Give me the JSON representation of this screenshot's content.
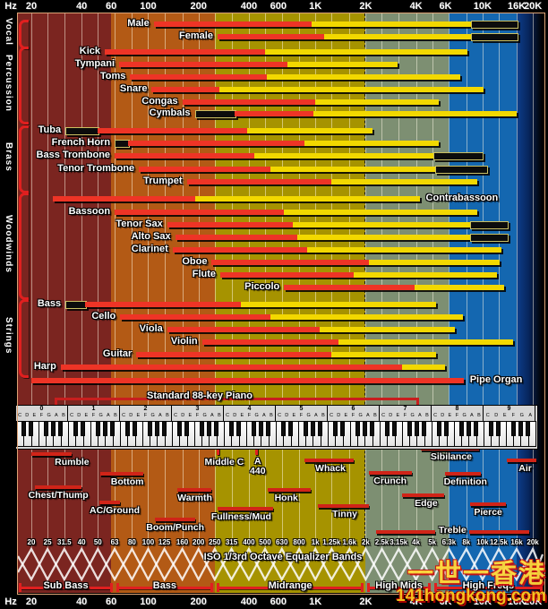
{
  "axis": {
    "unit": "Hz",
    "ticks": [
      {
        "label": "20",
        "f": 20
      },
      {
        "label": "40",
        "f": 40
      },
      {
        "label": "60",
        "f": 60
      },
      {
        "label": "100",
        "f": 100
      },
      {
        "label": "200",
        "f": 200
      },
      {
        "label": "400",
        "f": 400
      },
      {
        "label": "600",
        "f": 600
      },
      {
        "label": "1K",
        "f": 1000
      },
      {
        "label": "2K",
        "f": 2000
      },
      {
        "label": "4K",
        "f": 4000
      },
      {
        "label": "6K",
        "f": 6000
      },
      {
        "label": "10K",
        "f": 10000
      },
      {
        "label": "16K",
        "f": 16000
      },
      {
        "label": "20K",
        "f": 20000
      }
    ]
  },
  "colors": {
    "fundamental_red": "#ee3426",
    "harmonics_yellow": "#f2d800",
    "extended_black": "#0c0c0c",
    "bracket_red": "#e01f1f",
    "band_sub": "#7b2520",
    "band_low": "#b35a15",
    "band_mid": "#a69300",
    "band_himid": "#7d8f72",
    "band_high": "#1467b0",
    "watermark_yellow": "#ffd83a"
  },
  "chart_data": {
    "type": "bar",
    "x_scale": "log",
    "x_range": [
      20,
      20000
    ],
    "x_unit": "Hz",
    "segment_colors": {
      "red": "#ee3426",
      "yellow": "#f2d800",
      "ext": "#0c0c0c"
    },
    "bands_background": [
      {
        "from": 20,
        "to": 60,
        "color": "#7b2520"
      },
      {
        "from": 60,
        "to": 250,
        "color": "#b35a15"
      },
      {
        "from": 250,
        "to": 2000,
        "color": "#a69300"
      },
      {
        "from": 2000,
        "to": 6300,
        "color": "#7d8f72"
      },
      {
        "from": 6300,
        "to": 16000,
        "color": "#1467b0"
      }
    ],
    "sections": [
      {
        "name": "Vocal",
        "bracket_y": [
          22,
          49
        ],
        "rows": [
          {
            "name": "Male",
            "y": 27,
            "side": "left",
            "segs": [
              [
                "red",
                108,
                950
              ],
              [
                "yellow",
                950,
                8500
              ],
              [
                "ext",
                8500,
                16000
              ]
            ]
          },
          {
            "name": "Female",
            "y": 41,
            "side": "left",
            "segs": [
              [
                "red",
                260,
                1130
              ],
              [
                "yellow",
                1130,
                8500
              ],
              [
                "ext",
                8500,
                16000
              ]
            ]
          }
        ]
      },
      {
        "name": "Percussion",
        "bracket_y": [
          52,
          133
        ],
        "rows": [
          {
            "name": "Kick",
            "y": 58,
            "side": "left",
            "segs": [
              [
                "red",
                55,
                500
              ],
              [
                "yellow",
                500,
                8100
              ]
            ]
          },
          {
            "name": "Tympani",
            "y": 72,
            "side": "left",
            "segs": [
              [
                "red",
                67,
                680
              ],
              [
                "yellow",
                680,
                3100
              ]
            ]
          },
          {
            "name": "Toms",
            "y": 86,
            "side": "left",
            "segs": [
              [
                "red",
                78,
                510
              ],
              [
                "yellow",
                510,
                7400
              ]
            ]
          },
          {
            "name": "Snare",
            "y": 100,
            "side": "left",
            "segs": [
              [
                "red",
                105,
                265
              ],
              [
                "yellow",
                265,
                10100
              ]
            ]
          },
          {
            "name": "Congas",
            "y": 114,
            "side": "left",
            "segs": [
              [
                "red",
                160,
                1000
              ],
              [
                "yellow",
                1000,
                5500
              ]
            ]
          },
          {
            "name": "Cymbals",
            "y": 127,
            "side": "left",
            "segs": [
              [
                "ext",
                190,
                330
              ],
              [
                "red",
                330,
                970
              ],
              [
                "yellow",
                970,
                16000
              ]
            ]
          }
        ]
      },
      {
        "name": "Brass",
        "bracket_y": [
          140,
          210
        ],
        "rows": [
          {
            "name": "Tuba",
            "y": 146,
            "side": "left",
            "segs": [
              [
                "ext",
                32,
                50
              ],
              [
                "red",
                50,
                390
              ],
              [
                "yellow",
                390,
                2200
              ]
            ]
          },
          {
            "name": "French Horn",
            "y": 160,
            "side": "left",
            "segs": [
              [
                "ext",
                63,
                76
              ],
              [
                "red",
                76,
                860
              ],
              [
                "yellow",
                860,
                5500
              ]
            ]
          },
          {
            "name": "Bass Trombone",
            "y": 174,
            "side": "left",
            "segs": [
              [
                "red",
                63,
                430
              ],
              [
                "yellow",
                430,
                5100
              ],
              [
                "ext",
                5100,
                9900
              ]
            ]
          },
          {
            "name": "Tenor Trombone",
            "y": 189,
            "side": "left",
            "segs": [
              [
                "red",
                88,
                540
              ],
              [
                "yellow",
                540,
                5200
              ],
              [
                "ext",
                5200,
                10500
              ]
            ]
          },
          {
            "name": "Trumpet",
            "y": 203,
            "side": "left",
            "segs": [
              [
                "red",
                170,
                1250
              ],
              [
                "yellow",
                1250,
                9300
              ]
            ]
          }
        ]
      },
      {
        "name": "Woodwinds",
        "bracket_y": [
          215,
          329
        ],
        "rows": [
          {
            "name": "Contrabassoon",
            "y": 222,
            "side": "right",
            "segs": [
              [
                "red",
                27,
                190
              ],
              [
                "yellow",
                190,
                4200
              ]
            ]
          },
          {
            "name": "Bassoon",
            "y": 237,
            "side": "left",
            "segs": [
              [
                "red",
                63,
                650
              ],
              [
                "yellow",
                650,
                9300
              ]
            ]
          },
          {
            "name": "Tenor Sax",
            "y": 251,
            "side": "left",
            "segs": [
              [
                "red",
                130,
                730
              ],
              [
                "yellow",
                730,
                8400
              ],
              [
                "ext",
                8400,
                14000
              ]
            ]
          },
          {
            "name": "Alto Sax",
            "y": 265,
            "side": "left",
            "segs": [
              [
                "red",
                145,
                780
              ],
              [
                "yellow",
                780,
                8400
              ],
              [
                "ext",
                8400,
                14000
              ]
            ]
          },
          {
            "name": "Clarinet",
            "y": 279,
            "side": "left",
            "segs": [
              [
                "red",
                140,
                890
              ],
              [
                "yellow",
                890,
                13000
              ]
            ]
          },
          {
            "name": "Oboe",
            "y": 293,
            "side": "left",
            "segs": [
              [
                "red",
                240,
                2100
              ],
              [
                "yellow",
                2100,
                12600
              ]
            ]
          },
          {
            "name": "Flute",
            "y": 307,
            "side": "left",
            "segs": [
              [
                "red",
                270,
                1700
              ],
              [
                "yellow",
                1700,
                12200
              ]
            ]
          },
          {
            "name": "Piccolo",
            "y": 321,
            "side": "left",
            "segs": [
              [
                "red",
                650,
                3900
              ],
              [
                "yellow",
                3900,
                13500
              ]
            ]
          }
        ]
      },
      {
        "name": "Strings",
        "bracket_y": [
          334,
          416
        ],
        "rows": [
          {
            "name": "Bass",
            "y": 340,
            "side": "left",
            "segs": [
              [
                "ext",
                32,
                42
              ],
              [
                "red",
                42,
                360
              ],
              [
                "yellow",
                360,
                5300
              ]
            ]
          },
          {
            "name": "Cello",
            "y": 354,
            "side": "left",
            "segs": [
              [
                "red",
                68,
                540
              ],
              [
                "yellow",
                540,
                7600
              ]
            ]
          },
          {
            "name": "Viola",
            "y": 368,
            "side": "left",
            "segs": [
              [
                "red",
                130,
                1060
              ],
              [
                "yellow",
                1060,
                6800
              ]
            ]
          },
          {
            "name": "Violin",
            "y": 382,
            "side": "left",
            "segs": [
              [
                "red",
                210,
                1370
              ],
              [
                "yellow",
                1370,
                15200
              ]
            ]
          },
          {
            "name": "Guitar",
            "y": 396,
            "side": "left",
            "segs": [
              [
                "red",
                85,
                1250
              ],
              [
                "yellow",
                1250,
                5300
              ]
            ]
          },
          {
            "name": "Harp",
            "y": 410,
            "side": "left",
            "segs": [
              [
                "red",
                30,
                3300
              ],
              [
                "yellow",
                3300,
                6000
              ]
            ]
          },
          {
            "name": "Pipe Organ",
            "y": 425,
            "side": "right",
            "segs": [
              [
                "red",
                20,
                7700
              ]
            ]
          }
        ]
      }
    ],
    "descriptors": [
      {
        "label": "Rumble",
        "bar": [
          20,
          35
        ],
        "bar_y": 505,
        "text_f": 35,
        "text_y": 510
      },
      {
        "label": "Chest/Thump",
        "bar": [
          21,
          40
        ],
        "bar_y": 542,
        "text_f": 29,
        "text_y": 547
      },
      {
        "label": "Bottom",
        "bar": [
          52,
          93
        ],
        "bar_y": 527,
        "text_f": 75,
        "text_y": 532
      },
      {
        "label": "AC/Ground",
        "bar": [
          51,
          68
        ],
        "bar_y": 559,
        "text_f": 63,
        "text_y": 564
      },
      {
        "label": "Warmth",
        "bar": [
          150,
          240
        ],
        "bar_y": 545,
        "text_f": 190,
        "text_y": 550
      },
      {
        "label": "Boom/Punch",
        "bar": [
          110,
          190
        ],
        "bar_y": 578,
        "text_f": 145,
        "text_y": 583
      },
      {
        "label": "Fullness/Mud",
        "bar": [
          260,
          560
        ],
        "bar_y": 566,
        "text_f": 360,
        "text_y": 571
      },
      {
        "label": "Middle C",
        "tick_f": 261.6,
        "tick_y": 497,
        "text_f": 285,
        "text_y": 510
      },
      {
        "label": "A",
        "label2": "440",
        "tick_f": 440,
        "tick_y": 497,
        "text_f": 452,
        "text_y": 509
      },
      {
        "label": "Whack",
        "bar": [
          860,
          1700
        ],
        "bar_y": 512,
        "text_f": 1230,
        "text_y": 517
      },
      {
        "label": "Honk",
        "bar": [
          520,
          940
        ],
        "bar_y": 545,
        "text_f": 670,
        "text_y": 550
      },
      {
        "label": "Tinny",
        "bar": [
          1030,
          2100
        ],
        "bar_y": 563,
        "text_f": 1500,
        "text_y": 568
      },
      {
        "label": "Crunch",
        "bar": [
          2100,
          3800
        ],
        "bar_y": 526,
        "text_f": 2800,
        "text_y": 531
      },
      {
        "label": "Edge",
        "bar": [
          3300,
          5900
        ],
        "bar_y": 551,
        "text_f": 4600,
        "text_y": 556
      },
      {
        "label": "Sibilance",
        "bar": [
          4300,
          9500
        ],
        "bar_y": 499,
        "text_f": 6500,
        "text_y": 504
      },
      {
        "label": "Definition",
        "bar": [
          6000,
          9800
        ],
        "bar_y": 527,
        "text_f": 7900,
        "text_y": 532
      },
      {
        "label": "Pierce",
        "bar": [
          8400,
          13800
        ],
        "bar_y": 561,
        "text_f": 10800,
        "text_y": 566
      },
      {
        "label": "Treble",
        "bar": [
          2300,
          5200
        ],
        "bar2": [
          8300,
          19000
        ],
        "bar_y": 592,
        "text_f": 6600,
        "text_y": 586
      },
      {
        "label": "Air",
        "bar": [
          14000,
          21000
        ],
        "bar_y": 512,
        "text_f": 18000,
        "text_y": 517
      }
    ],
    "iso": {
      "title": "ISO 1/3rd Octave Equalizer Bands",
      "bands": [
        {
          "label": "20",
          "f": 20
        },
        {
          "label": "25",
          "f": 25
        },
        {
          "label": "31.5",
          "f": 31.5
        },
        {
          "label": "40",
          "f": 40
        },
        {
          "label": "50",
          "f": 50
        },
        {
          "label": "63",
          "f": 63
        },
        {
          "label": "80",
          "f": 80
        },
        {
          "label": "100",
          "f": 100
        },
        {
          "label": "125",
          "f": 125
        },
        {
          "label": "160",
          "f": 160
        },
        {
          "label": "200",
          "f": 200
        },
        {
          "label": "250",
          "f": 250
        },
        {
          "label": "315",
          "f": 315
        },
        {
          "label": "400",
          "f": 400
        },
        {
          "label": "500",
          "f": 500
        },
        {
          "label": "630",
          "f": 630
        },
        {
          "label": "800",
          "f": 800
        },
        {
          "label": "1k",
          "f": 1000
        },
        {
          "label": "1.25k",
          "f": 1250
        },
        {
          "label": "1.6k",
          "f": 1600
        },
        {
          "label": "2k",
          "f": 2000
        },
        {
          "label": "2.5k",
          "f": 2500
        },
        {
          "label": "3.15k",
          "f": 3150
        },
        {
          "label": "4k",
          "f": 4000
        },
        {
          "label": "5k",
          "f": 5000
        },
        {
          "label": "6.3k",
          "f": 6300
        },
        {
          "label": "8k",
          "f": 8000
        },
        {
          "label": "10k",
          "f": 10000
        },
        {
          "label": "12.5k",
          "f": 12500
        },
        {
          "label": "16k",
          "f": 16000
        },
        {
          "label": "20k",
          "f": 20000
        }
      ]
    },
    "ranges": [
      {
        "label": "Sub Bass",
        "f": [
          20,
          63
        ]
      },
      {
        "label": "Bass",
        "f": [
          63,
          250
        ]
      },
      {
        "label": "Midrange",
        "f": [
          250,
          2000
        ]
      },
      {
        "label": "High Mids",
        "f": [
          2000,
          5000
        ]
      },
      {
        "label": "High Freqs",
        "f": [
          5000,
          20000
        ]
      }
    ]
  },
  "piano": {
    "label": "Standard 88-key Piano",
    "octaves": [
      "0",
      "1",
      "2",
      "3",
      "4",
      "5",
      "6",
      "7",
      "8",
      "9"
    ],
    "letters": [
      "C",
      "D",
      "E",
      "F",
      "G",
      "A",
      "B"
    ],
    "bracket_f": [
      27.5,
      4186
    ]
  },
  "watermark": {
    "line1": "一世一香港",
    "line2": "141hongkong.com"
  }
}
